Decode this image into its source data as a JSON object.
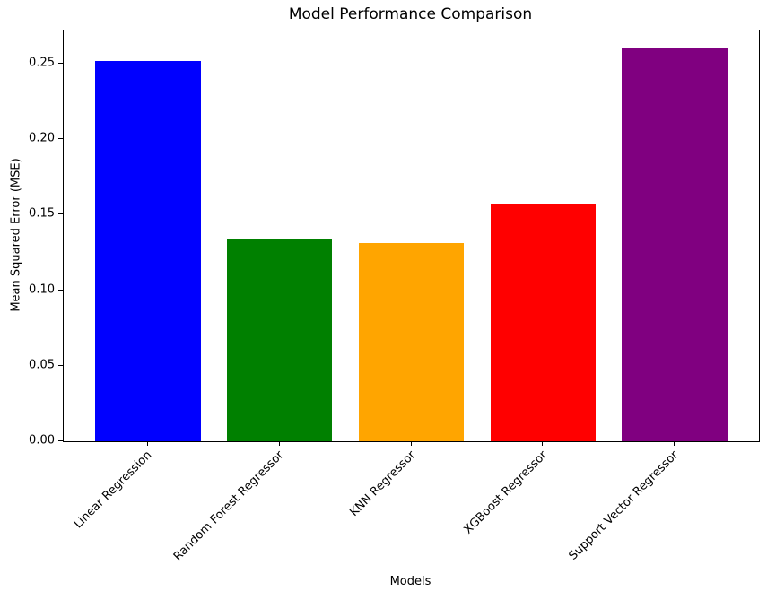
{
  "chart_data": {
    "type": "bar",
    "title": "Model Performance Comparison",
    "xlabel": "Models",
    "ylabel": "Mean Squared Error (MSE)",
    "categories": [
      "Linear Regression",
      "Random Forest Regressor",
      "KNN Regressor",
      "XGBoost Regressor",
      "Support Vector Regressor"
    ],
    "values": [
      0.252,
      0.134,
      0.131,
      0.157,
      0.26
    ],
    "bar_colors": [
      "#0000ff",
      "#008000",
      "#ffa500",
      "#ff0000",
      "#800080"
    ],
    "bar_width": 0.8,
    "xlim": [
      -0.64,
      4.64
    ],
    "ylim": [
      0,
      0.272
    ],
    "yticks": [
      0,
      0.05,
      0.1,
      0.15,
      0.2,
      0.25
    ],
    "ytick_labels": [
      "0.00",
      "0.05",
      "0.10",
      "0.15",
      "0.20",
      "0.25"
    ],
    "xtick_rotation_deg": 45,
    "grid": false,
    "legend_position": "none",
    "background_color": "#ffffff",
    "spine_color": "#000000"
  }
}
